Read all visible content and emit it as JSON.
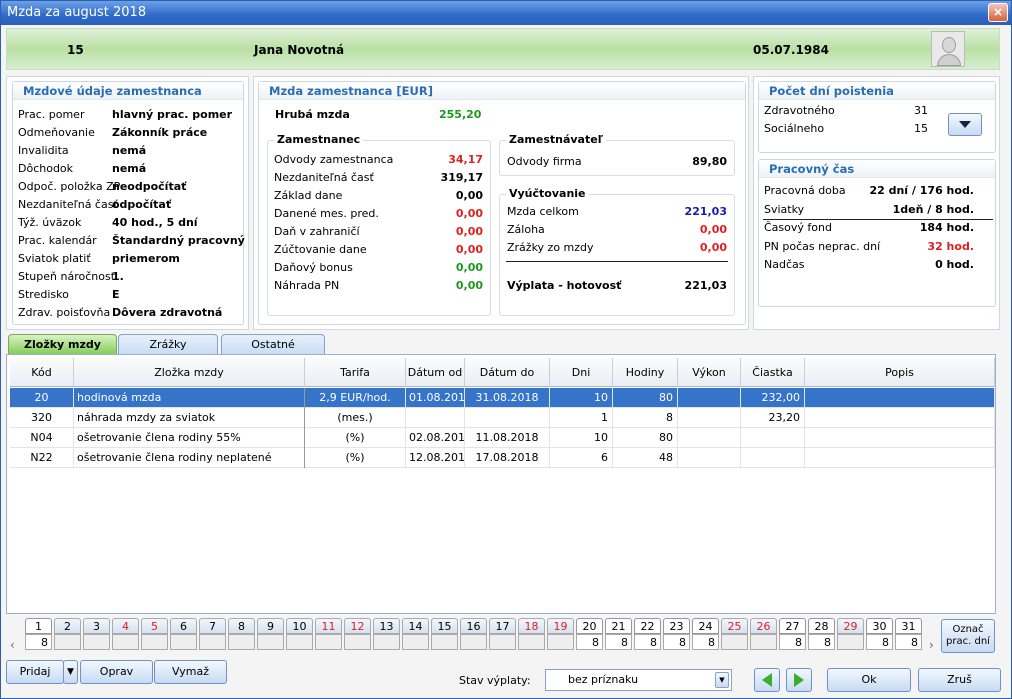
{
  "window": {
    "title": "Mzda za august 2018",
    "close": "×"
  },
  "employee": {
    "id": "15",
    "name": "Jana Novotná",
    "birth_date": "05.07.1984"
  },
  "mzdove_udaje": {
    "title": "Mzdové údaje zamestnanca",
    "rows": [
      {
        "label": "Prac. pomer",
        "value": "hlavný prac. pomer"
      },
      {
        "label": "Odmeňovanie",
        "value": "Zákonník práce"
      },
      {
        "label": "Invalidita",
        "value": "nemá"
      },
      {
        "label": "Dôchodok",
        "value": "nemá"
      },
      {
        "label": "Odpoč. položka ZP",
        "value": "neodpočítať"
      },
      {
        "label": "Nezdaniteľná časť",
        "value": "odpočítať"
      },
      {
        "label": "Týž. úväzok",
        "value": "40 hod., 5 dní"
      },
      {
        "label": "Prac. kalendár",
        "value": "Štandardný pracovný"
      },
      {
        "label": "Sviatok platiť",
        "value": "priemerom"
      },
      {
        "label": "Stupeň náročnosti",
        "value": "1."
      },
      {
        "label": "Stredisko",
        "value": "E"
      },
      {
        "label": "Zdrav. poisťovňa",
        "value": "Dôvera zdravotná"
      }
    ]
  },
  "mzda": {
    "title": "Mzda zamestnanca [EUR]",
    "hruba_label": "Hrubá mzda",
    "hruba_value": "255,20",
    "zamestnanec": {
      "title": "Zamestnanec",
      "rows": [
        {
          "label": "Odvody zamestnanca",
          "value": "34,17",
          "color": "#e02020"
        },
        {
          "label": "Nezdaniteľná časť",
          "value": "319,17",
          "color": "#000000"
        },
        {
          "label": "Základ dane",
          "value": "0,00",
          "color": "#000000"
        },
        {
          "label": "Danené mes. pred.",
          "value": "0,00",
          "color": "#e02020"
        },
        {
          "label": "Daň v zahraničí",
          "value": "0,00",
          "color": "#e02020"
        },
        {
          "label": "Zúčtovanie dane",
          "value": "0,00",
          "color": "#e02020"
        },
        {
          "label": "Daňový bonus",
          "value": "0,00",
          "color": "#1a9a1a"
        },
        {
          "label": "Náhrada PN",
          "value": "0,00",
          "color": "#1a9a1a"
        }
      ]
    },
    "zamestnavatel": {
      "title": "Zamestnávateľ",
      "label": "Odvody firma",
      "value": "89,80"
    },
    "vyuctovanie": {
      "title": "Vyúčtovanie",
      "rows": [
        {
          "label": "Mzda celkom",
          "value": "221,03",
          "color": "#1a1ab0"
        },
        {
          "label": "Záloha",
          "value": "0,00",
          "color": "#e02020"
        },
        {
          "label": "Zrážky zo mzdy",
          "value": "0,00",
          "color": "#e02020"
        }
      ],
      "vyplata_label": "Výplata - hotovosť",
      "vyplata_value": "221,03"
    }
  },
  "poistenie": {
    "title": "Počet dní poistenia",
    "rows": [
      {
        "label": "Zdravotného",
        "value": "31"
      },
      {
        "label": "Sociálneho",
        "value": "15"
      }
    ]
  },
  "pracovny_cas": {
    "title": "Pracovný čas",
    "rows": [
      {
        "label": "Pracovná doba",
        "value": "22 dní / 176 hod.",
        "color": "#000000"
      },
      {
        "label": "Sviatky",
        "value": "1deň / 8 hod.",
        "color": "#000000"
      },
      {
        "label": "Časový fond",
        "value": "184 hod.",
        "color": "#000000"
      },
      {
        "label": "PN počas neprac. dní",
        "value": "32 hod.",
        "color": "#e02020"
      },
      {
        "label": "Nadčas",
        "value": "0 hod.",
        "color": "#000000"
      }
    ]
  },
  "tabs": [
    "Zložky mzdy",
    "Zrážky",
    "Ostatné"
  ],
  "grid": {
    "columns": [
      "Kód",
      "Zložka mzdy",
      "Tarifa",
      "Dátum od",
      "Dátum do",
      "Dni",
      "Hodiny",
      "Výkon",
      "Čiastka",
      "Popis"
    ],
    "rows": [
      [
        "20",
        "hodinová mzda",
        "2,9 EUR/hod.",
        "01.08.2018",
        "31.08.2018",
        "10",
        "80",
        "",
        "232,00",
        ""
      ],
      [
        "320",
        "náhrada mzdy za sviatok",
        "(mes.)",
        "",
        "",
        "1",
        "8",
        "",
        "23,20",
        ""
      ],
      [
        "N04",
        "ošetrovanie člena rodiny 55%",
        "(%)",
        "02.08.2018",
        "11.08.2018",
        "10",
        "80",
        "",
        "",
        " "
      ],
      [
        "N22",
        "ošetrovanie člena rodiny neplatené",
        "(%)",
        "12.08.2018",
        "17.08.2018",
        "6",
        "48",
        "",
        "",
        " "
      ]
    ]
  },
  "calendar": {
    "days": [
      "1",
      "2",
      "3",
      "4",
      "5",
      "6",
      "7",
      "8",
      "9",
      "10",
      "11",
      "12",
      "13",
      "14",
      "15",
      "16",
      "17",
      "18",
      "19",
      "20",
      "21",
      "22",
      "23",
      "24",
      "25",
      "26",
      "27",
      "28",
      "29",
      "30",
      "31"
    ],
    "hours": [
      "8",
      "",
      "",
      "",
      "",
      "",
      "",
      "",
      "",
      "",
      "",
      "",
      "",
      "",
      "",
      "",
      "",
      "",
      "",
      "8",
      "8",
      "8",
      "8",
      "8",
      "",
      "",
      "8",
      "8",
      "",
      "8",
      "8"
    ],
    "weekend_days": [
      "4",
      "5",
      "11",
      "12",
      "18",
      "19",
      "25",
      "26",
      "29"
    ],
    "white_days": [
      "1",
      "20",
      "21",
      "22",
      "23",
      "24",
      "27",
      "28",
      "30",
      "31"
    ],
    "mark_label": "Označ prac. dní"
  },
  "buttons": {
    "add": "Pridaj",
    "edit": "Oprav",
    "delete": "Vymaž",
    "ok": "Ok",
    "cancel": "Zruš"
  },
  "status": {
    "label": "Stav výplaty:",
    "value": "bez príznaku"
  }
}
